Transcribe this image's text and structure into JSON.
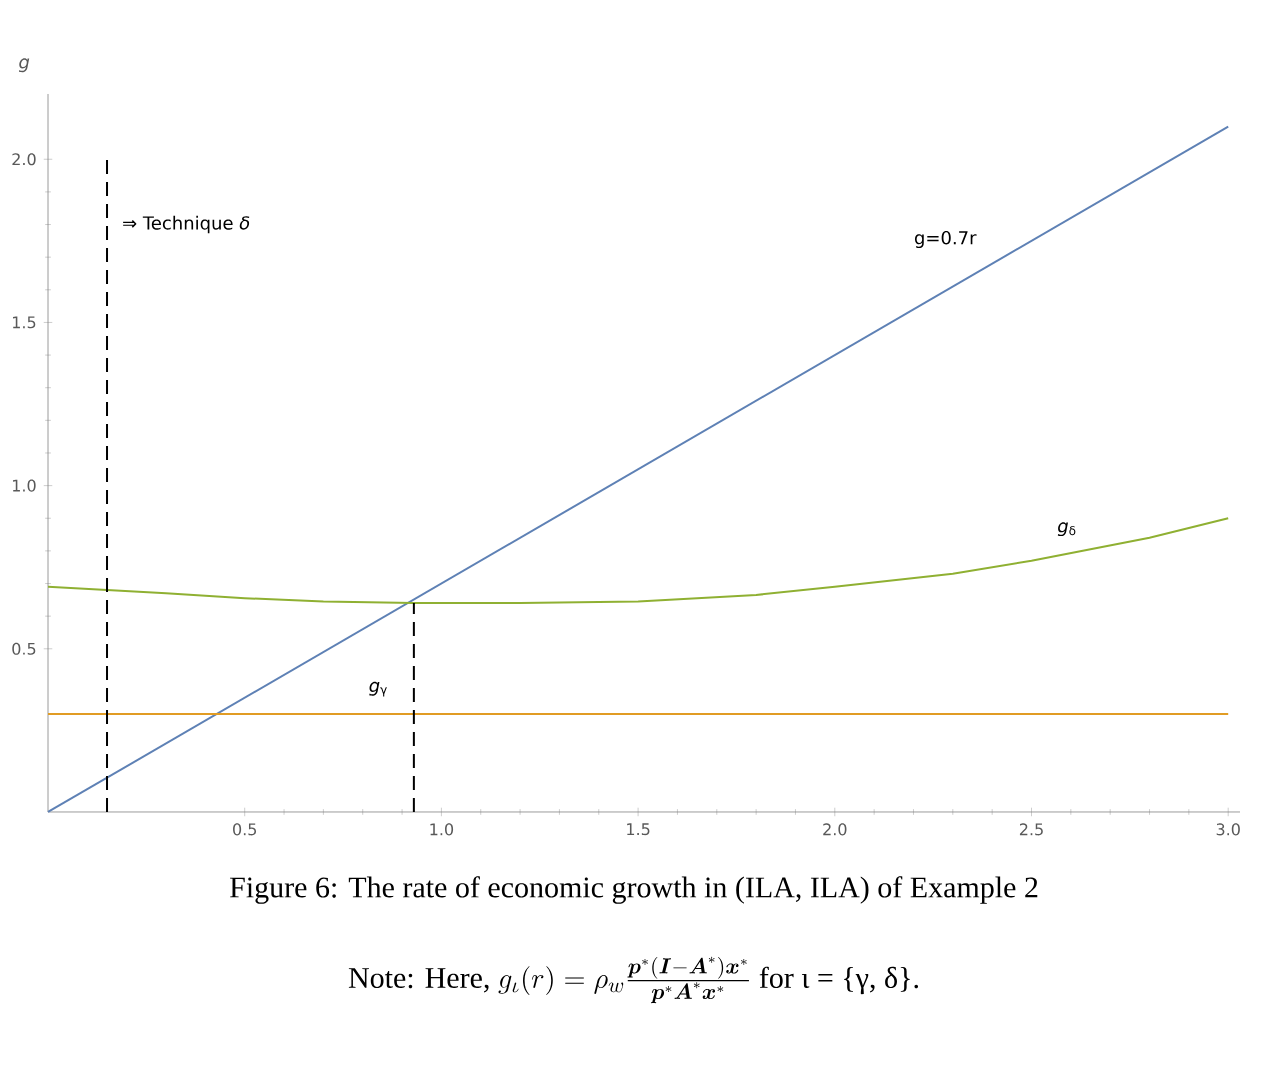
{
  "chart_data": {
    "type": "line",
    "title": "Figure 6: The rate of economic growth in (ILA, ILA) of Example 2",
    "ylabel": "g",
    "xlim": [
      0,
      3.03
    ],
    "ylim": [
      0,
      2.2
    ],
    "xticks": [
      0.5,
      {
        "value": 1,
        "label": "1.0"
      },
      1.5,
      {
        "value": 2,
        "label": "2.0"
      },
      2.5,
      {
        "value": 3,
        "label": "3.0"
      }
    ],
    "yticks": [
      0.5,
      {
        "value": 1,
        "label": "1.0"
      },
      1.5,
      {
        "value": 2,
        "label": "2.0"
      }
    ],
    "grid": false,
    "marker": "none",
    "series": [
      {
        "name": "g=0.7r",
        "color": "#5e81b5",
        "x": [
          0,
          3.0
        ],
        "values": [
          0,
          2.1
        ],
        "line_style": "solid"
      },
      {
        "name": "*g*$_{δ}$",
        "color": "#8fb032",
        "x": [
          0,
          0.15,
          0.3,
          0.5,
          0.7,
          0.93,
          1.2,
          1.5,
          1.8,
          2.0,
          2.3,
          2.5,
          2.8,
          3.0
        ],
        "values": [
          0.69,
          0.68,
          0.67,
          0.655,
          0.645,
          0.64,
          0.64,
          0.645,
          0.665,
          0.69,
          0.73,
          0.77,
          0.84,
          0.9
        ],
        "line_style": "solid"
      },
      {
        "name": "*g*$_{γ}$",
        "color": "#e19c24",
        "x": [
          0,
          3.0
        ],
        "values": [
          0.3,
          0.3
        ],
        "line_style": "solid"
      },
      {
        "color": "#000000",
        "x": [
          0.93,
          0.93
        ],
        "values": [
          0,
          0.64
        ],
        "line_style": "dashed"
      },
      {
        "color": "#000000",
        "x": [
          0.15,
          0.15
        ],
        "values": [
          0,
          2.0
        ],
        "line_style": "dashed"
      }
    ],
    "annotations": [
      {
        "text": "⇒ Technique *δ*",
        "x": 0.15,
        "y": 1.8
      },
      "Note: Here,",
      "g_{\\iota}(r)=\\rho_w\\frac{\\boldsymbol{p}^*(\\boldsymbol{I}-\\boldsymbol{A}^*)\\boldsymbol{x}^*}{\\boldsymbol{p}^*\\boldsymbol{A}^*\\boldsymbol{x}^*}",
      "for ι = {γ, δ}."
    ]
  }
}
